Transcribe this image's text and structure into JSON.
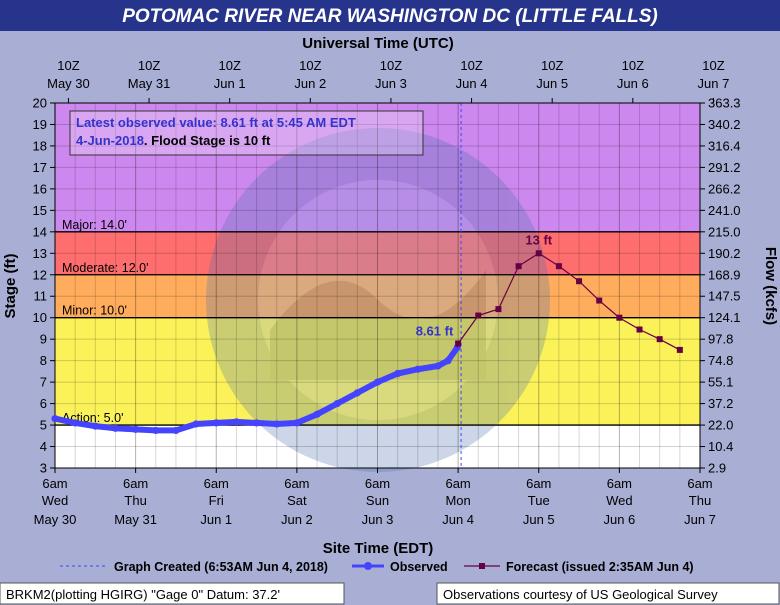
{
  "header": {
    "title": "POTOMAC RIVER NEAR WASHINGTON DC (LITTLE FALLS)"
  },
  "colors": {
    "background": "#a9aed4",
    "title_bar": "#27348b",
    "major": "#cc88ee",
    "moderate": "#ff6e6e",
    "minor": "#ffad5c",
    "action": "#fbf25a",
    "normal": "#ffffff",
    "observed": "#4444ff",
    "forecast": "#660044",
    "annotation": "#3333cc"
  },
  "chart_data": {
    "type": "line",
    "x_axis": {
      "label": "Site Time (EDT)",
      "range": [
        "2018-05-30 06:00",
        "2018-06-07 06:00"
      ],
      "ticks": [
        {
          "time": "6am",
          "day": "Wed",
          "date": "May 30"
        },
        {
          "time": "6am",
          "day": "Thu",
          "date": "May 31"
        },
        {
          "time": "6am",
          "day": "Fri",
          "date": "Jun 1"
        },
        {
          "time": "6am",
          "day": "Sat",
          "date": "Jun 2"
        },
        {
          "time": "6am",
          "day": "Sun",
          "date": "Jun 3"
        },
        {
          "time": "6am",
          "day": "Mon",
          "date": "Jun 4"
        },
        {
          "time": "6am",
          "day": "Tue",
          "date": "Jun 5"
        },
        {
          "time": "6am",
          "day": "Wed",
          "date": "Jun 6"
        },
        {
          "time": "6am",
          "day": "Thu",
          "date": "Jun 7"
        }
      ]
    },
    "top_axis": {
      "label": "Universal Time (UTC)",
      "ticks": [
        {
          "time": "10Z",
          "date": "May 30"
        },
        {
          "time": "10Z",
          "date": "May 31"
        },
        {
          "time": "10Z",
          "date": "Jun 1"
        },
        {
          "time": "10Z",
          "date": "Jun 2"
        },
        {
          "time": "10Z",
          "date": "Jun 3"
        },
        {
          "time": "10Z",
          "date": "Jun 4"
        },
        {
          "time": "10Z",
          "date": "Jun 5"
        },
        {
          "time": "10Z",
          "date": "Jun 6"
        },
        {
          "time": "10Z",
          "date": "Jun 7"
        }
      ]
    },
    "y_axis": {
      "label": "Stage (ft)",
      "range": [
        3,
        20
      ],
      "ticks": [
        3,
        4,
        5,
        6,
        7,
        8,
        9,
        10,
        11,
        12,
        13,
        14,
        15,
        16,
        17,
        18,
        19,
        20
      ]
    },
    "y2_axis": {
      "label": "Flow (kcfs)",
      "ticks": [
        "2.9",
        "10.4",
        "22.0",
        "37.2",
        "55.1",
        "74.8",
        "97.8",
        "124.1",
        "147.5",
        "168.9",
        "190.2",
        "215.0",
        "241.0",
        "266.2",
        "291.2",
        "316.4",
        "340.2",
        "363.3"
      ]
    },
    "flood_categories": [
      {
        "name": "Action",
        "label": "Action: 5.0'",
        "stage": 5.0
      },
      {
        "name": "Minor",
        "label": "Minor: 10.0'",
        "stage": 10.0
      },
      {
        "name": "Moderate",
        "label": "Moderate: 12.0'",
        "stage": 12.0
      },
      {
        "name": "Major",
        "label": "Major: 14.0'",
        "stage": 14.0
      }
    ],
    "info_box": {
      "line1": "Latest observed value: 8.61 ft at 5:45 AM EDT",
      "line2_date": "4-Jun-2018",
      "line2_rest": ". Flood Stage is 10 ft"
    },
    "graph_created_at": "2018-06-04 06:53",
    "series": [
      {
        "name": "Observed",
        "x": [
          "2018-05-30 06:00",
          "2018-05-30 12:00",
          "2018-05-30 18:00",
          "2018-05-31 00:00",
          "2018-05-31 06:00",
          "2018-05-31 12:00",
          "2018-05-31 18:00",
          "2018-06-01 00:00",
          "2018-06-01 06:00",
          "2018-06-01 12:00",
          "2018-06-01 18:00",
          "2018-06-02 00:00",
          "2018-06-02 06:00",
          "2018-06-02 12:00",
          "2018-06-02 18:00",
          "2018-06-03 00:00",
          "2018-06-03 06:00",
          "2018-06-03 12:00",
          "2018-06-03 18:00",
          "2018-06-04 00:00",
          "2018-06-04 03:00",
          "2018-06-04 05:45"
        ],
        "values": [
          5.3,
          5.1,
          4.95,
          4.85,
          4.8,
          4.75,
          4.75,
          5.05,
          5.1,
          5.15,
          5.1,
          5.05,
          5.1,
          5.5,
          6.0,
          6.5,
          7.0,
          7.4,
          7.6,
          7.75,
          8.0,
          8.61
        ]
      },
      {
        "name": "Forecast",
        "x": [
          "2018-06-04 06:00",
          "2018-06-04 12:00",
          "2018-06-04 18:00",
          "2018-06-05 00:00",
          "2018-06-05 06:00",
          "2018-06-05 12:00",
          "2018-06-05 18:00",
          "2018-06-06 00:00",
          "2018-06-06 06:00",
          "2018-06-06 12:00",
          "2018-06-06 18:00",
          "2018-06-07 00:00"
        ],
        "values": [
          8.8,
          10.1,
          10.4,
          12.4,
          13.0,
          12.4,
          11.7,
          10.8,
          10.0,
          9.45,
          9.0,
          8.5
        ]
      }
    ],
    "annotations": [
      {
        "text": "8.61 ft",
        "series": "Observed"
      },
      {
        "text": "13 ft",
        "series": "Forecast"
      }
    ],
    "legend": {
      "placement": "bottom",
      "created": "Graph Created (6:53AM Jun 4, 2018)",
      "observed": "Observed",
      "forecast": "Forecast (issued 2:35AM Jun 4)"
    },
    "footer": {
      "left": "BRKM2(plotting HGIRG) \"Gage 0\" Datum: 37.2'",
      "right": "Observations courtesy of US Geological Survey"
    }
  }
}
